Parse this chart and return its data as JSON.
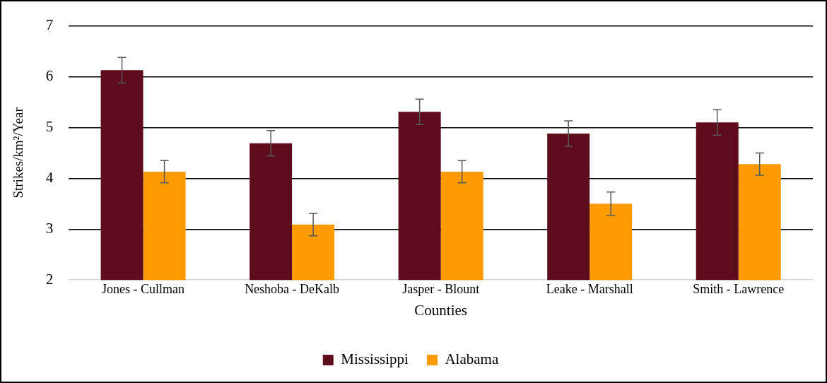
{
  "chart_data": {
    "type": "bar",
    "xlabel": "Counties",
    "ylabel": "Strikes/km²/Year",
    "categories": [
      "Jones - Cullman",
      "Neshoba - DeKalb",
      "Jasper - Blount",
      "Leake - Marshall",
      "Smith - Lawrence"
    ],
    "series": [
      {
        "name": "Mississippi",
        "color": "#5e0b1b",
        "values": [
          6.13,
          4.69,
          5.31,
          4.88,
          5.1
        ],
        "errors": [
          0.25,
          0.25,
          0.25,
          0.25,
          0.25
        ]
      },
      {
        "name": "Alabama",
        "color": "#fc9a00",
        "values": [
          4.13,
          3.09,
          4.13,
          3.5,
          4.28
        ],
        "errors": [
          0.22,
          0.22,
          0.22,
          0.23,
          0.22
        ]
      }
    ],
    "ylim": [
      2,
      7
    ],
    "yticks": [
      2,
      3,
      4,
      5,
      6,
      7
    ],
    "grid": "y",
    "legend": "bottom"
  }
}
